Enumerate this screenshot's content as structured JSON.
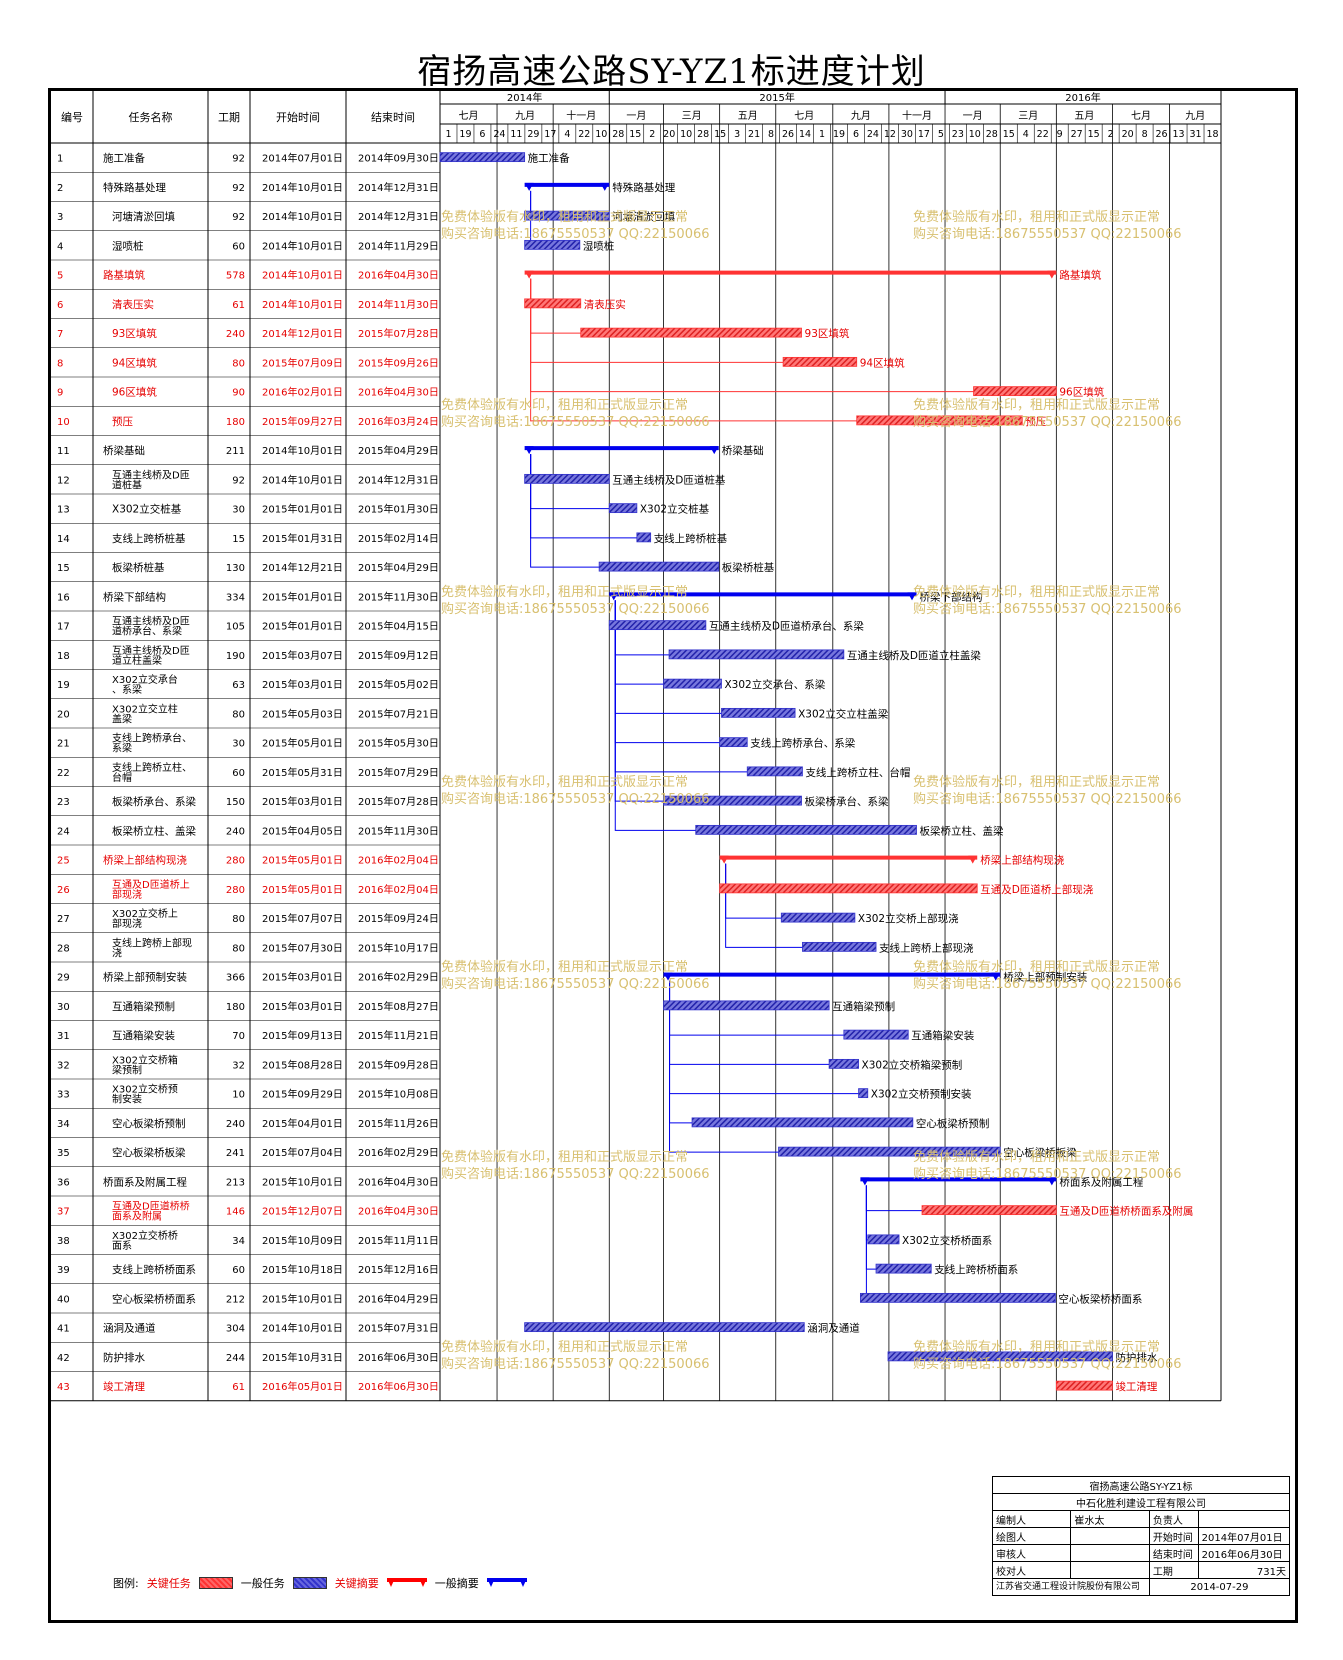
{
  "title": "宿扬高速公路SY-YZ1标进度计划",
  "headers": {
    "id": "编号",
    "name": "任务名称",
    "dur": "工期",
    "start": "开始时间",
    "end": "结束时间"
  },
  "timeline": {
    "years": [
      {
        "label": "2014年",
        "start": "2014-07-01",
        "end": "2014-12-31"
      },
      {
        "label": "2015年",
        "start": "2015-01-01",
        "end": "2015-12-31"
      },
      {
        "label": "2016年",
        "start": "2016-01-01",
        "end": "2016-10-31"
      }
    ],
    "periods": [
      {
        "label": "七月",
        "start": "2014-07-01"
      },
      {
        "label": "九月",
        "start": "2014-09-01"
      },
      {
        "label": "十一月",
        "start": "2014-11-01"
      },
      {
        "label": "一月",
        "start": "2015-01-01"
      },
      {
        "label": "三月",
        "start": "2015-03-01"
      },
      {
        "label": "五月",
        "start": "2015-05-01"
      },
      {
        "label": "七月",
        "start": "2015-07-01"
      },
      {
        "label": "九月",
        "start": "2015-09-01"
      },
      {
        "label": "十一月",
        "start": "2015-11-01"
      },
      {
        "label": "一月",
        "start": "2016-01-01"
      },
      {
        "label": "三月",
        "start": "2016-03-01"
      },
      {
        "label": "五月",
        "start": "2016-05-01"
      },
      {
        "label": "七月",
        "start": "2016-07-01"
      },
      {
        "label": "九月",
        "start": "2016-09-01"
      }
    ],
    "day_ticks": [
      "1",
      "19",
      "6",
      "24",
      "11",
      "29",
      "17",
      "4",
      "22",
      "10",
      "28",
      "15",
      "2",
      "20",
      "10",
      "28",
      "15",
      "3",
      "21",
      "8",
      "26",
      "14",
      "1",
      "19",
      "6",
      "24",
      "12",
      "30",
      "17",
      "5",
      "23",
      "10",
      "28",
      "15",
      "4",
      "22",
      "9",
      "27",
      "15",
      "2",
      "20",
      "8",
      "26",
      "13",
      "31",
      "18"
    ],
    "range_start": "2014-07-01",
    "range_end": "2016-10-27"
  },
  "chart_data": {
    "type": "gantt",
    "tasks": [
      {
        "id": "1",
        "name": "施工准备",
        "duration": 92,
        "start": "2014年07月01日",
        "end": "2014年09月30日",
        "s": "2014-07-01",
        "e": "2014-09-30",
        "kind": "normal",
        "indent": 0,
        "label": "施工准备"
      },
      {
        "id": "2",
        "name": "特殊路基处理",
        "duration": 92,
        "start": "2014年10月01日",
        "end": "2014年12月31日",
        "s": "2014-10-01",
        "e": "2014-12-31",
        "kind": "summary",
        "indent": 0,
        "label": "特殊路基处理"
      },
      {
        "id": "3",
        "name": "河塘清淤回填",
        "duration": 92,
        "start": "2014年10月01日",
        "end": "2014年12月31日",
        "s": "2014-10-01",
        "e": "2014-12-31",
        "kind": "normal",
        "indent": 1,
        "label": "河塘清淤回填"
      },
      {
        "id": "4",
        "name": "湿喷桩",
        "duration": 60,
        "start": "2014年10月01日",
        "end": "2014年11月29日",
        "s": "2014-10-01",
        "e": "2014-11-29",
        "kind": "normal",
        "indent": 1,
        "label": "湿喷桩"
      },
      {
        "id": "5",
        "name": "路基填筑",
        "duration": 578,
        "start": "2014年10月01日",
        "end": "2016年04月30日",
        "s": "2014-10-01",
        "e": "2016-04-30",
        "kind": "critical-summary",
        "indent": 0,
        "label": "路基填筑"
      },
      {
        "id": "6",
        "name": "清表压实",
        "duration": 61,
        "start": "2014年10月01日",
        "end": "2014年11月30日",
        "s": "2014-10-01",
        "e": "2014-11-30",
        "kind": "critical",
        "indent": 1,
        "label": "清表压实"
      },
      {
        "id": "7",
        "name": "93区填筑",
        "duration": 240,
        "start": "2014年12月01日",
        "end": "2015年07月28日",
        "s": "2014-12-01",
        "e": "2015-07-28",
        "kind": "critical",
        "indent": 1,
        "label": "93区填筑"
      },
      {
        "id": "8",
        "name": "94区填筑",
        "duration": 80,
        "start": "2015年07月09日",
        "end": "2015年09月26日",
        "s": "2015-07-09",
        "e": "2015-09-26",
        "kind": "critical",
        "indent": 1,
        "label": "94区填筑"
      },
      {
        "id": "9",
        "name": "96区填筑",
        "duration": 90,
        "start": "2016年02月01日",
        "end": "2016年04月30日",
        "s": "2016-02-01",
        "e": "2016-04-30",
        "kind": "critical",
        "indent": 1,
        "label": "96区填筑"
      },
      {
        "id": "10",
        "name": "预压",
        "duration": 180,
        "start": "2015年09月27日",
        "end": "2016年03月24日",
        "s": "2015-09-27",
        "e": "2016-03-24",
        "kind": "critical",
        "indent": 1,
        "label": "预压"
      },
      {
        "id": "11",
        "name": "桥梁基础",
        "duration": 211,
        "start": "2014年10月01日",
        "end": "2015年04月29日",
        "s": "2014-10-01",
        "e": "2015-04-29",
        "kind": "summary",
        "indent": 0,
        "label": "桥梁基础"
      },
      {
        "id": "12",
        "name": "互通主线桥及D匝道桩基",
        "duration": 92,
        "start": "2014年10月01日",
        "end": "2014年12月31日",
        "s": "2014-10-01",
        "e": "2014-12-31",
        "kind": "normal",
        "indent": 1,
        "label": "互通主线桥及D匝道桩基"
      },
      {
        "id": "13",
        "name": "X302立交桩基",
        "duration": 30,
        "start": "2015年01月01日",
        "end": "2015年01月30日",
        "s": "2015-01-01",
        "e": "2015-01-30",
        "kind": "normal",
        "indent": 1,
        "label": "X302立交桩基"
      },
      {
        "id": "14",
        "name": "支线上跨桥桩基",
        "duration": 15,
        "start": "2015年01月31日",
        "end": "2015年02月14日",
        "s": "2015-01-31",
        "e": "2015-02-14",
        "kind": "normal",
        "indent": 1,
        "label": "支线上跨桥桩基"
      },
      {
        "id": "15",
        "name": "板梁桥桩基",
        "duration": 130,
        "start": "2014年12月21日",
        "end": "2015年04月29日",
        "s": "2014-12-21",
        "e": "2015-04-29",
        "kind": "normal",
        "indent": 1,
        "label": "板梁桥桩基"
      },
      {
        "id": "16",
        "name": "桥梁下部结构",
        "duration": 334,
        "start": "2015年01月01日",
        "end": "2015年11月30日",
        "s": "2015-01-01",
        "e": "2015-11-30",
        "kind": "summary",
        "indent": 0,
        "label": "桥梁下部结构"
      },
      {
        "id": "17",
        "name": "互通主线桥及D匝道桥承台、系梁",
        "duration": 105,
        "start": "2015年01月01日",
        "end": "2015年04月15日",
        "s": "2015-01-01",
        "e": "2015-04-15",
        "kind": "normal",
        "indent": 1,
        "label": "互通主线桥及D匝道桥承台、系梁"
      },
      {
        "id": "18",
        "name": "互通主线桥及D匝道立柱盖梁",
        "duration": 190,
        "start": "2015年03月07日",
        "end": "2015年09月12日",
        "s": "2015-03-07",
        "e": "2015-09-12",
        "kind": "normal",
        "indent": 1,
        "label": "互通主线桥及D匝道立柱盖梁"
      },
      {
        "id": "19",
        "name": "X302立交承台、系梁",
        "duration": 63,
        "start": "2015年03月01日",
        "end": "2015年05月02日",
        "s": "2015-03-01",
        "e": "2015-05-02",
        "kind": "normal",
        "indent": 1,
        "label": "X302立交承台、系梁"
      },
      {
        "id": "20",
        "name": "X302立交立柱盖梁",
        "duration": 80,
        "start": "2015年05月03日",
        "end": "2015年07月21日",
        "s": "2015-05-03",
        "e": "2015-07-21",
        "kind": "normal",
        "indent": 1,
        "label": "X302立交立柱盖梁"
      },
      {
        "id": "21",
        "name": "支线上跨桥承台、系梁",
        "duration": 30,
        "start": "2015年05月01日",
        "end": "2015年05月30日",
        "s": "2015-05-01",
        "e": "2015-05-30",
        "kind": "normal",
        "indent": 1,
        "label": "支线上跨桥承台、系梁"
      },
      {
        "id": "22",
        "name": "支线上跨桥立柱、台帽",
        "duration": 60,
        "start": "2015年05月31日",
        "end": "2015年07月29日",
        "s": "2015-05-31",
        "e": "2015-07-29",
        "kind": "normal",
        "indent": 1,
        "label": "支线上跨桥立柱、台帽"
      },
      {
        "id": "23",
        "name": "板梁桥承台、系梁",
        "duration": 150,
        "start": "2015年03月01日",
        "end": "2015年07月28日",
        "s": "2015-03-01",
        "e": "2015-07-28",
        "kind": "normal",
        "indent": 1,
        "label": "板梁桥承台、系梁"
      },
      {
        "id": "24",
        "name": "板梁桥立柱、盖梁",
        "duration": 240,
        "start": "2015年04月05日",
        "end": "2015年11月30日",
        "s": "2015-04-05",
        "e": "2015-11-30",
        "kind": "normal",
        "indent": 1,
        "label": "板梁桥立柱、盖梁"
      },
      {
        "id": "25",
        "name": "桥梁上部结构现浇",
        "duration": 280,
        "start": "2015年05月01日",
        "end": "2016年02月04日",
        "s": "2015-05-01",
        "e": "2016-02-04",
        "kind": "critical-summary",
        "indent": 0,
        "label": "桥梁上部结构现浇"
      },
      {
        "id": "26",
        "name": "互通及D匝道桥上部现浇",
        "duration": 280,
        "start": "2015年05月01日",
        "end": "2016年02月04日",
        "s": "2015-05-01",
        "e": "2016-02-04",
        "kind": "critical",
        "indent": 1,
        "label": "互通及D匝道桥上部现浇"
      },
      {
        "id": "27",
        "name": "X302立交桥上部现浇",
        "duration": 80,
        "start": "2015年07月07日",
        "end": "2015年09月24日",
        "s": "2015-07-07",
        "e": "2015-09-24",
        "kind": "normal",
        "indent": 1,
        "label": "X302立交桥上部现浇"
      },
      {
        "id": "28",
        "name": "支线上跨桥上部现浇",
        "duration": 80,
        "start": "2015年07月30日",
        "end": "2015年10月17日",
        "s": "2015-07-30",
        "e": "2015-10-17",
        "kind": "normal",
        "indent": 1,
        "label": "支线上跨桥上部现浇"
      },
      {
        "id": "29",
        "name": "桥梁上部预制安装",
        "duration": 366,
        "start": "2015年03月01日",
        "end": "2016年02月29日",
        "s": "2015-03-01",
        "e": "2016-02-29",
        "kind": "summary",
        "indent": 0,
        "label": "桥梁上部预制安装"
      },
      {
        "id": "30",
        "name": "互通箱梁预制",
        "duration": 180,
        "start": "2015年03月01日",
        "end": "2015年08月27日",
        "s": "2015-03-01",
        "e": "2015-08-27",
        "kind": "normal",
        "indent": 1,
        "label": "互通箱梁预制"
      },
      {
        "id": "31",
        "name": "互通箱梁安装",
        "duration": 70,
        "start": "2015年09月13日",
        "end": "2015年11月21日",
        "s": "2015-09-13",
        "e": "2015-11-21",
        "kind": "normal",
        "indent": 1,
        "label": "互通箱梁安装"
      },
      {
        "id": "32",
        "name": "X302立交桥箱梁预制",
        "duration": 32,
        "start": "2015年08月28日",
        "end": "2015年09月28日",
        "s": "2015-08-28",
        "e": "2015-09-28",
        "kind": "normal",
        "indent": 1,
        "label": "X302立交桥箱梁预制"
      },
      {
        "id": "33",
        "name": "X302立交桥预制安装",
        "duration": 10,
        "start": "2015年09月29日",
        "end": "2015年10月08日",
        "s": "2015-09-29",
        "e": "2015-10-08",
        "kind": "normal",
        "indent": 1,
        "label": "X302立交桥预制安装"
      },
      {
        "id": "34",
        "name": "空心板梁桥预制",
        "duration": 240,
        "start": "2015年04月01日",
        "end": "2015年11月26日",
        "s": "2015-04-01",
        "e": "2015-11-26",
        "kind": "normal",
        "indent": 1,
        "label": "空心板梁桥预制"
      },
      {
        "id": "35",
        "name": "空心板梁桥板梁",
        "duration": 241,
        "start": "2015年07月04日",
        "end": "2016年02月29日",
        "s": "2015-07-04",
        "e": "2016-02-29",
        "kind": "normal",
        "indent": 1,
        "label": "空心板梁桥板梁"
      },
      {
        "id": "36",
        "name": "桥面系及附属工程",
        "duration": 213,
        "start": "2015年10月01日",
        "end": "2016年04月30日",
        "s": "2015-10-01",
        "e": "2016-04-30",
        "kind": "summary",
        "indent": 0,
        "label": "桥面系及附属工程"
      },
      {
        "id": "37",
        "name": "互通及D匝道桥桥面系及附属",
        "duration": 146,
        "start": "2015年12月07日",
        "end": "2016年04月30日",
        "s": "2015-12-07",
        "e": "2016-04-30",
        "kind": "critical",
        "indent": 1,
        "label": "互通及D匝道桥桥面系及附属"
      },
      {
        "id": "38",
        "name": "X302立交桥桥面系",
        "duration": 34,
        "start": "2015年10月09日",
        "end": "2015年11月11日",
        "s": "2015-10-09",
        "e": "2015-11-11",
        "kind": "normal",
        "indent": 1,
        "label": "X302立交桥桥面系"
      },
      {
        "id": "39",
        "name": "支线上跨桥桥面系",
        "duration": 60,
        "start": "2015年10月18日",
        "end": "2015年12月16日",
        "s": "2015-10-18",
        "e": "2015-12-16",
        "kind": "normal",
        "indent": 1,
        "label": "支线上跨桥桥面系"
      },
      {
        "id": "40",
        "name": "空心板梁桥桥面系",
        "duration": 212,
        "start": "2015年10月01日",
        "end": "2016年04月29日",
        "s": "2015-10-01",
        "e": "2016-04-29",
        "kind": "normal",
        "indent": 1,
        "label": "空心板梁桥桥面系"
      },
      {
        "id": "41",
        "name": "涵洞及通道",
        "duration": 304,
        "start": "2014年10月01日",
        "end": "2015年07月31日",
        "s": "2014-10-01",
        "e": "2015-07-31",
        "kind": "normal",
        "indent": 0,
        "label": "涵洞及通道"
      },
      {
        "id": "42",
        "name": "防护排水",
        "duration": 244,
        "start": "2015年10月31日",
        "end": "2016年06月30日",
        "s": "2015-10-31",
        "e": "2016-06-30",
        "kind": "normal",
        "indent": 0,
        "label": "防护排水"
      },
      {
        "id": "43",
        "name": "竣工清理",
        "duration": 61,
        "start": "2016年05月01日",
        "end": "2016年06月30日",
        "s": "2016-05-01",
        "e": "2016-06-30",
        "kind": "critical",
        "indent": 0,
        "label": "竣工清理"
      }
    ]
  },
  "watermark": {
    "line1": "免费体验版有水印，租用和正式版显示正常",
    "line2": "购买咨询电话:18675550537 QQ:22150066"
  },
  "legend": {
    "title": "图例:",
    "critical": "关键任务",
    "normal": "一般任务",
    "critical_summary": "关键摘要",
    "summary": "一般摘要"
  },
  "info": {
    "project": "宿扬高速公路SY-YZ1标",
    "company": "中石化胜利建设工程有限公司",
    "editor_label": "编制人",
    "editor": "崔水太",
    "manager_label": "负责人",
    "manager": "",
    "drawer_label": "绘图人",
    "start_label": "开始时间",
    "start": "2014年07月01日",
    "reviewer_label": "审核人",
    "end_label": "结束时间",
    "end": "2016年06月30日",
    "checker_label": "校对人",
    "dur_label": "工期",
    "dur": "731天",
    "software": "江苏省交通工程设计院股份有限公司",
    "date": "2014-07-29"
  },
  "colors": {
    "critical": "#ff3333",
    "normal": "#3333cc",
    "summary": "#0000ee",
    "critical_text": "#e60000",
    "watermark": "#d8c070",
    "grid": "#000000"
  }
}
